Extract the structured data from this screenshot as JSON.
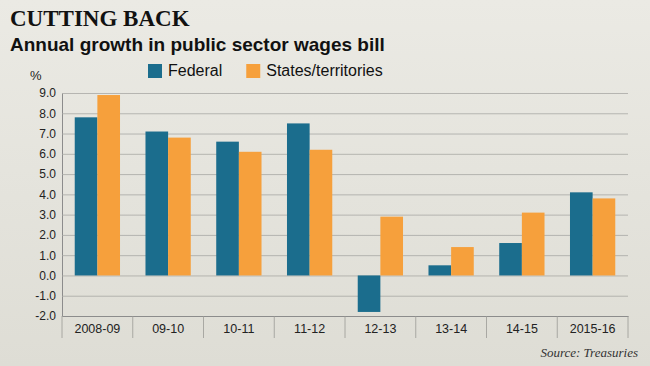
{
  "chart_data": {
    "type": "bar",
    "title": "CUTTING BACK",
    "subtitle": "Annual growth in public sector wages bill",
    "y_label": "%",
    "source": "Source: Treasuries",
    "categories": [
      "2008-09",
      "09-10",
      "10-11",
      "11-12",
      "12-13",
      "13-14",
      "14-15",
      "2015-16"
    ],
    "series": [
      {
        "name": "Federal",
        "color": "#1b6d8d",
        "values": [
          7.8,
          7.1,
          6.6,
          7.5,
          -1.8,
          0.5,
          1.6,
          4.1
        ]
      },
      {
        "name": "States/territories",
        "color": "#f6a03c",
        "values": [
          8.9,
          6.8,
          6.1,
          6.2,
          2.9,
          1.4,
          3.1,
          3.8
        ]
      }
    ],
    "ylim": [
      -2,
      9
    ],
    "yticks": [
      {
        "value": -2,
        "label": "-2.0"
      },
      {
        "value": -1,
        "label": "-1.0"
      },
      {
        "value": 0,
        "label": "0.0"
      },
      {
        "value": 1,
        "label": "1.0"
      },
      {
        "value": 2,
        "label": "2.0"
      },
      {
        "value": 3,
        "label": "3.0"
      },
      {
        "value": 4,
        "label": "4.0"
      },
      {
        "value": 5,
        "label": "5.0"
      },
      {
        "value": 6,
        "label": "6.0"
      },
      {
        "value": 7,
        "label": "7.0"
      },
      {
        "value": 8,
        "label": "8.0"
      },
      {
        "value": 9,
        "label": "9.0"
      }
    ],
    "grid": true,
    "legend": "top"
  }
}
